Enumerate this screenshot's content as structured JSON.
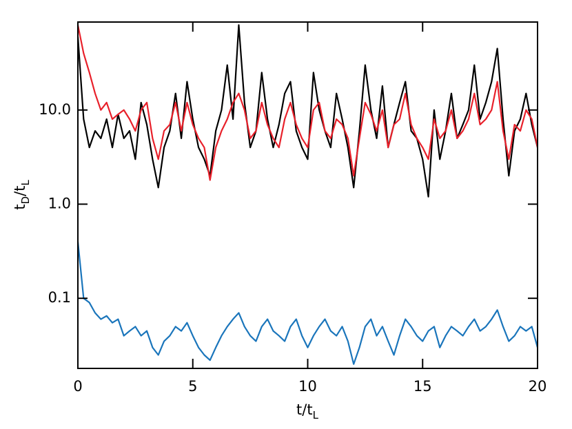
{
  "chart_data": {
    "type": "line",
    "xlabel": [
      "t/t",
      "L"
    ],
    "ylabel": [
      "t",
      "D",
      "/t",
      "L"
    ],
    "log_y": true,
    "xlim": [
      0,
      20
    ],
    "xticks": [
      0,
      5,
      10,
      15,
      20
    ],
    "ylim": [
      0.018,
      86
    ],
    "yticks": [
      0.1,
      {
        "value": 1,
        "label": "1.0"
      },
      {
        "value": 10,
        "label": "10.0"
      }
    ],
    "x": [
      0,
      0.25,
      0.5,
      0.75,
      1,
      1.25,
      1.5,
      1.75,
      2,
      2.25,
      2.5,
      2.75,
      3,
      3.25,
      3.5,
      3.75,
      4,
      4.25,
      4.5,
      4.75,
      5,
      5.25,
      5.5,
      5.75,
      6,
      6.25,
      6.5,
      6.75,
      7,
      7.25,
      7.5,
      7.75,
      8,
      8.25,
      8.5,
      8.75,
      9,
      9.25,
      9.5,
      9.75,
      10,
      10.25,
      10.5,
      10.75,
      11,
      11.25,
      11.5,
      11.75,
      12,
      12.25,
      12.5,
      12.75,
      13,
      13.25,
      13.5,
      13.75,
      14,
      14.25,
      14.5,
      14.75,
      15,
      15.25,
      15.5,
      15.75,
      16,
      16.25,
      16.5,
      16.75,
      17,
      17.25,
      17.5,
      17.75,
      18,
      18.25,
      18.5,
      18.75,
      19,
      19.25,
      19.5,
      19.75,
      20
    ],
    "series": [
      {
        "color": "#000000",
        "values": [
          60,
          8,
          4,
          6,
          5,
          8,
          4,
          9,
          5,
          6,
          3,
          12,
          7,
          3,
          1.5,
          4,
          6,
          15,
          5,
          20,
          8,
          4,
          3,
          2,
          6,
          10,
          30,
          8,
          80,
          12,
          4,
          6,
          25,
          8,
          4,
          7,
          15,
          20,
          6,
          4,
          3,
          25,
          10,
          6,
          4,
          15,
          8,
          4,
          1.5,
          6,
          30,
          10,
          5,
          18,
          4,
          7,
          12,
          20,
          6,
          5,
          3,
          1.2,
          10,
          3,
          6,
          15,
          5,
          7,
          10,
          30,
          8,
          12,
          20,
          45,
          8,
          2,
          6,
          8,
          15,
          7,
          4
        ]
      },
      {
        "color": "#e8202a",
        "values": [
          80,
          40,
          25,
          15,
          10,
          12,
          8,
          9,
          10,
          8,
          6,
          10,
          12,
          5,
          3,
          6,
          7,
          12,
          6,
          12,
          7,
          5,
          4,
          1.8,
          4,
          6,
          8,
          12,
          15,
          10,
          5,
          6,
          12,
          7,
          5,
          4,
          8,
          12,
          7,
          5,
          4,
          10,
          12,
          6,
          5,
          8,
          7,
          5,
          2,
          5,
          12,
          9,
          6,
          10,
          4,
          7,
          8,
          15,
          7,
          5,
          4,
          3,
          8,
          5,
          6,
          10,
          5,
          6,
          8,
          15,
          7,
          8,
          10,
          20,
          6,
          3,
          7,
          6,
          10,
          8,
          4
        ]
      },
      {
        "color": "#1a75bb",
        "values": [
          0.4,
          0.1,
          0.09,
          0.07,
          0.06,
          0.065,
          0.055,
          0.06,
          0.04,
          0.045,
          0.05,
          0.04,
          0.045,
          0.03,
          0.025,
          0.035,
          0.04,
          0.05,
          0.045,
          0.055,
          0.04,
          0.03,
          0.025,
          0.022,
          0.03,
          0.04,
          0.05,
          0.06,
          0.07,
          0.05,
          0.04,
          0.035,
          0.05,
          0.06,
          0.045,
          0.04,
          0.035,
          0.05,
          0.06,
          0.04,
          0.03,
          0.04,
          0.05,
          0.06,
          0.045,
          0.04,
          0.05,
          0.035,
          0.02,
          0.03,
          0.05,
          0.06,
          0.04,
          0.05,
          0.035,
          0.025,
          0.04,
          0.06,
          0.05,
          0.04,
          0.035,
          0.045,
          0.05,
          0.03,
          0.04,
          0.05,
          0.045,
          0.04,
          0.05,
          0.06,
          0.045,
          0.05,
          0.06,
          0.075,
          0.05,
          0.035,
          0.04,
          0.05,
          0.045,
          0.05,
          0.03
        ]
      }
    ]
  }
}
